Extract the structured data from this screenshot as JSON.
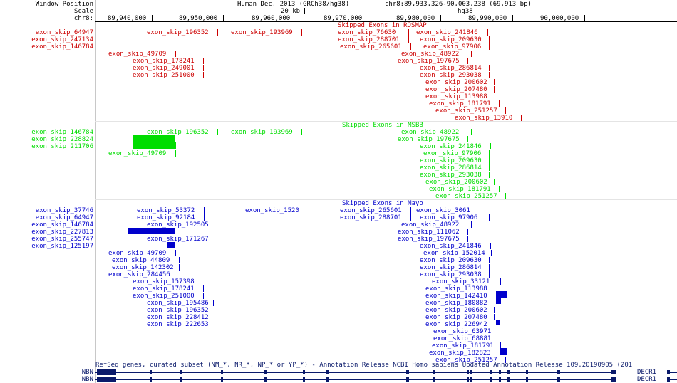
{
  "browser": {
    "position_label": "Window Position",
    "scale_label": "Scale",
    "chrom_label": "chr8:",
    "assembly": "Human Dec. 2013 (GRCh38/hg38)",
    "region": "chr8:89,933,326-90,003,238 (69,913 bp)",
    "scale_value": "20 kb",
    "scale_assembly": "hg38",
    "ticks": [
      "89,940,000",
      "89,950,000",
      "89,960,000",
      "89,970,000",
      "89,980,000",
      "89,990,000",
      "90,000,000"
    ]
  },
  "tracks": {
    "rosmap": {
      "title": "Skipped Exons in ROSMAP",
      "color": "#cc0000",
      "side_labels": [
        "exon_skip_64947",
        "exon_skip_247134",
        "exon_skip_146784"
      ],
      "items": [
        "exon_skip_196352",
        "exon_skip_193969",
        "exon_skip_76630",
        "exon_skip_241846",
        "exon_skip_288701",
        "exon_skip_209630",
        "exon_skip_265601",
        "exon_skip_97906",
        "exon_skip_49709",
        "exon_skip_48922",
        "exon_skip_178241",
        "exon_skip_197675",
        "exon_skip_249001",
        "exon_skip_286814",
        "exon_skip_251000",
        "exon_skip_293038",
        "exon_skip_200602",
        "exon_skip_207480",
        "exon_skip_113988",
        "exon_skip_181791",
        "exon_skip_251257",
        "exon_skip_13910"
      ]
    },
    "msbb": {
      "title": "Skipped Exons in MSBB",
      "color": "#00dd00",
      "side_labels": [
        "exon_skip_146784",
        "exon_skip_228824",
        "exon_skip_211706"
      ],
      "items": [
        "exon_skip_196352",
        "exon_skip_193969",
        "exon_skip_48922",
        "exon_skip_197675",
        "exon_skip_241846",
        "exon_skip_49709",
        "exon_skip_97906",
        "exon_skip_209630",
        "exon_skip_286814",
        "exon_skip_293038",
        "exon_skip_200602",
        "exon_skip_181791",
        "exon_skip_251257"
      ]
    },
    "mayo": {
      "title": "Skipped Exons in Mayo",
      "color": "#0000cc",
      "side_labels": [
        "exon_skip_37746",
        "exon_skip_64947",
        "exon_skip_146784",
        "exon_skip_227813",
        "exon_skip_255747",
        "exon_skip_125197"
      ],
      "items": [
        "exon_skip_53372",
        "exon_skip_1520",
        "exon_skip_265601",
        "exon_skip_3061",
        "exon_skip_92184",
        "exon_skip_288701",
        "exon_skip_97906",
        "exon_skip_192505",
        "exon_skip_48922",
        "exon_skip_111062",
        "exon_skip_171267",
        "exon_skip_197675",
        "exon_skip_241846",
        "exon_skip_49709",
        "exon_skip_152014",
        "exon_skip_44809",
        "exon_skip_209630",
        "exon_skip_142302",
        "exon_skip_286814",
        "exon_skip_284456",
        "exon_skip_293038",
        "exon_skip_157398",
        "exon_skip_33121",
        "exon_skip_178241",
        "exon_skip_113988",
        "exon_skip_251000",
        "exon_skip_142410",
        "exon_skip_195486",
        "exon_skip_180882",
        "exon_skip_196352",
        "exon_skip_200602",
        "exon_skip_228412",
        "exon_skip_207480",
        "exon_skip_222653",
        "exon_skip_226942",
        "exon_skip_63971",
        "exon_skip_68881",
        "exon_skip_181791",
        "exon_skip_182823",
        "exon_skip_251257"
      ]
    },
    "refseq": {
      "title": "RefSeq genes, curated subset (NM_*, NR_*, NP_* or YP_*) - Annotation Release NCBI Homo sapiens Updated Annotation Release 109.20190905 (201",
      "color": "#0a1a6b",
      "side_labels": [
        "NBN",
        "NBN"
      ],
      "right_labels": [
        "DECR1",
        "DECR1"
      ]
    }
  }
}
